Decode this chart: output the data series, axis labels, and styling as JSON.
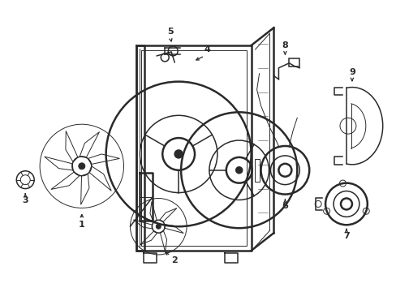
{
  "bg_color": "#ffffff",
  "line_color": "#2a2a2a",
  "lw_thick": 1.8,
  "lw_med": 1.1,
  "lw_thin": 0.7,
  "fig_w": 4.89,
  "fig_h": 3.6,
  "dpi": 100,
  "font_size": 8,
  "font_weight": "bold"
}
